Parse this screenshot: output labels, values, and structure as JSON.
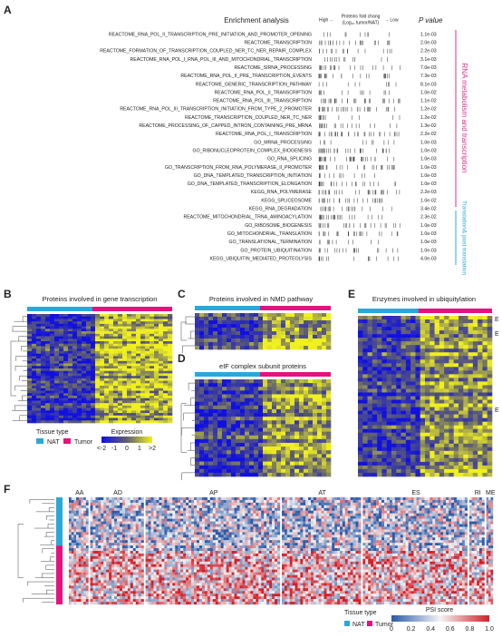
{
  "panel_a": {
    "label": "A",
    "title": "Enrichment analysis",
    "high": "High ←",
    "fold_change": "Proteins fold chang",
    "fold_change_sub": "(Log₁₀ tumor/NAT)",
    "low": "→ Low",
    "p_header": "P value",
    "terms": [
      {
        "name": "REACTOME_RNA_POL_II_TRANSCRIPTION_PRE_INITIATION_AND_PROMOTER_OPENING",
        "p": "1.1e-03"
      },
      {
        "name": "REACTOME_TRANSCRIPTION",
        "p": "2.0e-03"
      },
      {
        "name": "REACTOME_FORMATION_OF_TRANSCRIPTION_COUPLED_NER_TC_NER_REPAIR_COMPLEX",
        "p": "2.2e-03"
      },
      {
        "name": "REACTOME_RNA_POL_I_RNA_POL_III_AND_MITOCHONDRIAL_TRANSCRIPTION",
        "p": "3.1e-03"
      },
      {
        "name": "REACTOME_SIRNA_PROCESSING",
        "p": "7.0e-03"
      },
      {
        "name": "REACTOME_RNA_POL_II_PRE_TRANSCRIPTION_EVENTS",
        "p": "7.3e-03"
      },
      {
        "name": "REACTOME_GENERIC_TRANSCRIPTION_PATHWAY",
        "p": "8.1e-03"
      },
      {
        "name": "REACTOME_RNA_POL_II_TRANSCRIPTION",
        "p": "1.0e-02"
      },
      {
        "name": "REACTOME_RNA_POL_III_TRANSCRIPTION",
        "p": "1.1e-02"
      },
      {
        "name": "REACTOME_RNA_POL_III_TRANSCRIPTION_INITIATION_FROM_TYPE_2_PROMOTER",
        "p": "1.2e-02"
      },
      {
        "name": "REACTOME_TRANSCRIPTION_COUPLED_NER_TC_NER",
        "p": "1.2e-02"
      },
      {
        "name": "REACTOME_PROCESSING_OF_CAPPED_INTRON_CONTAINING_PRE_MRNA",
        "p": "1.3e-02"
      },
      {
        "name": "REACTOME_RNA_POL_I_TRANSCRIPTION",
        "p": "2.2e-02"
      },
      {
        "name": "GO_MRNA_PROCESSING",
        "p": "1.0e-03"
      },
      {
        "name": "GO_RIBONUCLEOPROTEIN_COMPLEX_BIOGENESIS",
        "p": "1.0e-03"
      },
      {
        "name": "GO_RNA_SPLICING",
        "p": "1.0e-03"
      },
      {
        "name": "GO_TRANSCRIPTION_FROM_RNA_POLYMERASE_II_PROMOTER",
        "p": "1.0e-03"
      },
      {
        "name": "GO_DNA_TEMPLATED_TRANSCRIPTION_INITIATION",
        "p": "1.0e-03"
      },
      {
        "name": "GO_DNA_TEMPLATED_TRANSCRIPTION_ELONGATION",
        "p": "1.0e-03"
      },
      {
        "name": "KEGG_RNA_POLYMERASE",
        "p": "2.2e-03"
      },
      {
        "name": "KEGG_SPLICEOSOME",
        "p": "1.0e-02"
      },
      {
        "name": "KEGG_RNA_DEGRADATION",
        "p": "3.4e-02"
      },
      {
        "name": "REACTOME_MITOCHONDRIAL_TRNA_AMINOACYLATION",
        "p": "2.3e-02"
      },
      {
        "name": "GO_RIBOSOME_BIOGENESIS",
        "p": "1.0e-03"
      },
      {
        "name": "GO_MITOCHONDRIAL_TRANSLATION",
        "p": "1.0e-03"
      },
      {
        "name": "GO_TRANSLATIONAL_TERMINATION",
        "p": "1.0e-03"
      },
      {
        "name": "GO_PROTEIN_UBIQUITINATION",
        "p": "1.0e-03"
      },
      {
        "name": "KEGG_UBIQUITIN_MEDIATED_PROTEOLYSIS",
        "p": "4.0e-03"
      }
    ],
    "group_rna": "RNA metabolism and transcription",
    "group_translation": "Translation& post translation"
  },
  "panel_b": {
    "label": "B",
    "title": "Proteins involved in gene transcription"
  },
  "panel_c": {
    "label": "C",
    "title": "Proteins involved in NMD pathway"
  },
  "panel_d": {
    "label": "D",
    "title": "eIF complex subunit proteins"
  },
  "panel_e": {
    "label": "E",
    "title": "Enzymes involved in ubiquitylation",
    "side": [
      "E",
      "E",
      "E"
    ]
  },
  "legend_be": {
    "tissue_title": "Tissue type",
    "nat": "NAT",
    "tumor": "Tumor",
    "expression_title": "Expression",
    "ticks": [
      "<-2",
      "-1",
      "0",
      "1",
      ">2"
    ]
  },
  "panel_f": {
    "label": "F",
    "groups": [
      "AA",
      "AD",
      "AP",
      "AT",
      "ES",
      "RI",
      "ME"
    ],
    "tissue_title": "Tissue type",
    "nat": "NAT",
    "tumor": "Tumor",
    "psi_title": "PSI score",
    "ticks": [
      "0",
      "0.2",
      "0.4",
      "0.6",
      "0.8",
      "1.0"
    ]
  }
}
